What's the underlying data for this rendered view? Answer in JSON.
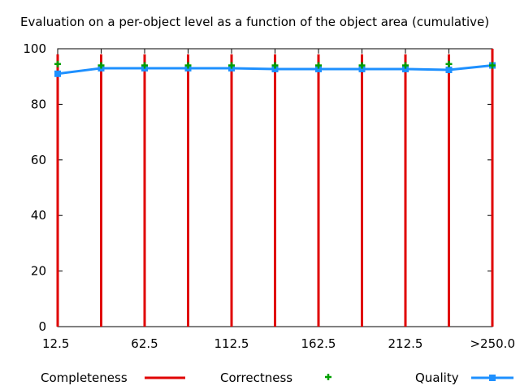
{
  "chart_data": {
    "type": "line",
    "title": "Evaluation on a per-object level as a function of the object area (cumulative)",
    "x": [
      "12.5",
      "37.5",
      "62.5",
      "87.5",
      "112.5",
      "137.5",
      "162.5",
      "187.5",
      "212.5",
      "237.5",
      ">250.0"
    ],
    "x_tick_labels": [
      "12.5",
      "62.5",
      "112.5",
      "162.5",
      "212.5",
      ">250.0"
    ],
    "y_ticks": [
      "0",
      "20",
      "40",
      "60",
      "80",
      "100"
    ],
    "ylim": [
      0,
      100
    ],
    "grid": false,
    "legend_position": "bottom",
    "series": [
      {
        "name": "Completeness",
        "style": "impulses",
        "color": "#e00000",
        "values": [
          98,
          98,
          98,
          98,
          98,
          98,
          98,
          98,
          98,
          98,
          100
        ]
      },
      {
        "name": "Correctness",
        "style": "points",
        "color": "#00a000",
        "values": [
          94.5,
          94,
          94,
          94,
          94,
          94,
          94,
          94,
          94,
          94.5,
          94
        ]
      },
      {
        "name": "Quality",
        "style": "linespoints",
        "color": "#1e90ff",
        "values": [
          91,
          93,
          93,
          93,
          93,
          92.7,
          92.7,
          92.7,
          92.7,
          92.4,
          94
        ]
      }
    ]
  }
}
